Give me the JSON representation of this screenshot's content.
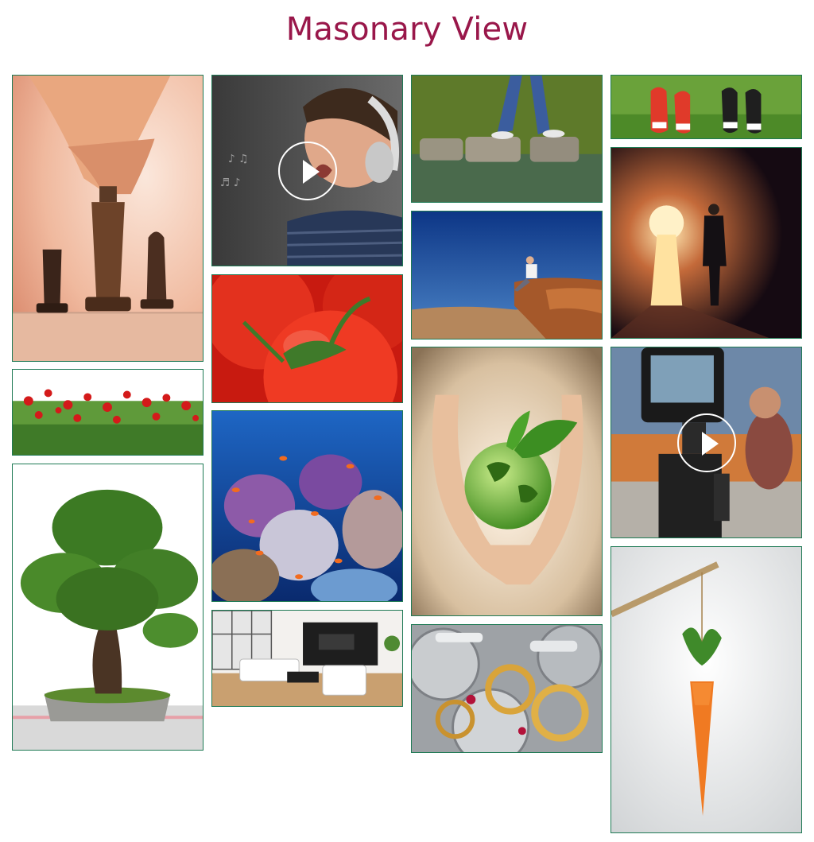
{
  "header": {
    "title": "Masonary View"
  },
  "gallery": {
    "border_color": "#1f7a55",
    "title_color": "#99174a",
    "items": [
      {
        "name": "chess-pieces",
        "type": "image"
      },
      {
        "name": "poppy-field",
        "type": "image"
      },
      {
        "name": "bonsai-tree",
        "type": "image"
      },
      {
        "name": "boy-with-headphones",
        "type": "video",
        "icon": "play-icon"
      },
      {
        "name": "tomatoes",
        "type": "image"
      },
      {
        "name": "coral-reef",
        "type": "image"
      },
      {
        "name": "living-room",
        "type": "image"
      },
      {
        "name": "stepping-stones",
        "type": "image"
      },
      {
        "name": "man-on-cliff",
        "type": "image"
      },
      {
        "name": "hands-holding-globe",
        "type": "image"
      },
      {
        "name": "clock-gears",
        "type": "image"
      },
      {
        "name": "sneakers-on-grass",
        "type": "image"
      },
      {
        "name": "keyhole-doorway",
        "type": "image"
      },
      {
        "name": "tv-camera",
        "type": "video",
        "icon": "play-icon"
      },
      {
        "name": "carrot-on-stick",
        "type": "image"
      }
    ]
  }
}
